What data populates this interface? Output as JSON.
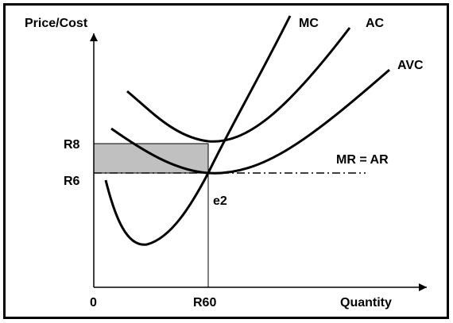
{
  "diagram": {
    "y_axis_label": "Price/Cost",
    "x_axis_label": "Quantity",
    "origin_label": "0",
    "price_high_label": "R8",
    "price_low_label": "R6",
    "quantity_label": "R60",
    "equilibrium_label": "e2",
    "curves": {
      "mc": "MC",
      "ac": "AC",
      "avc": "AVC",
      "mr": "MR = AR"
    },
    "colors": {
      "lines": "#000000",
      "shaded_area": "#c0c0c0",
      "background": "#ffffff"
    }
  }
}
